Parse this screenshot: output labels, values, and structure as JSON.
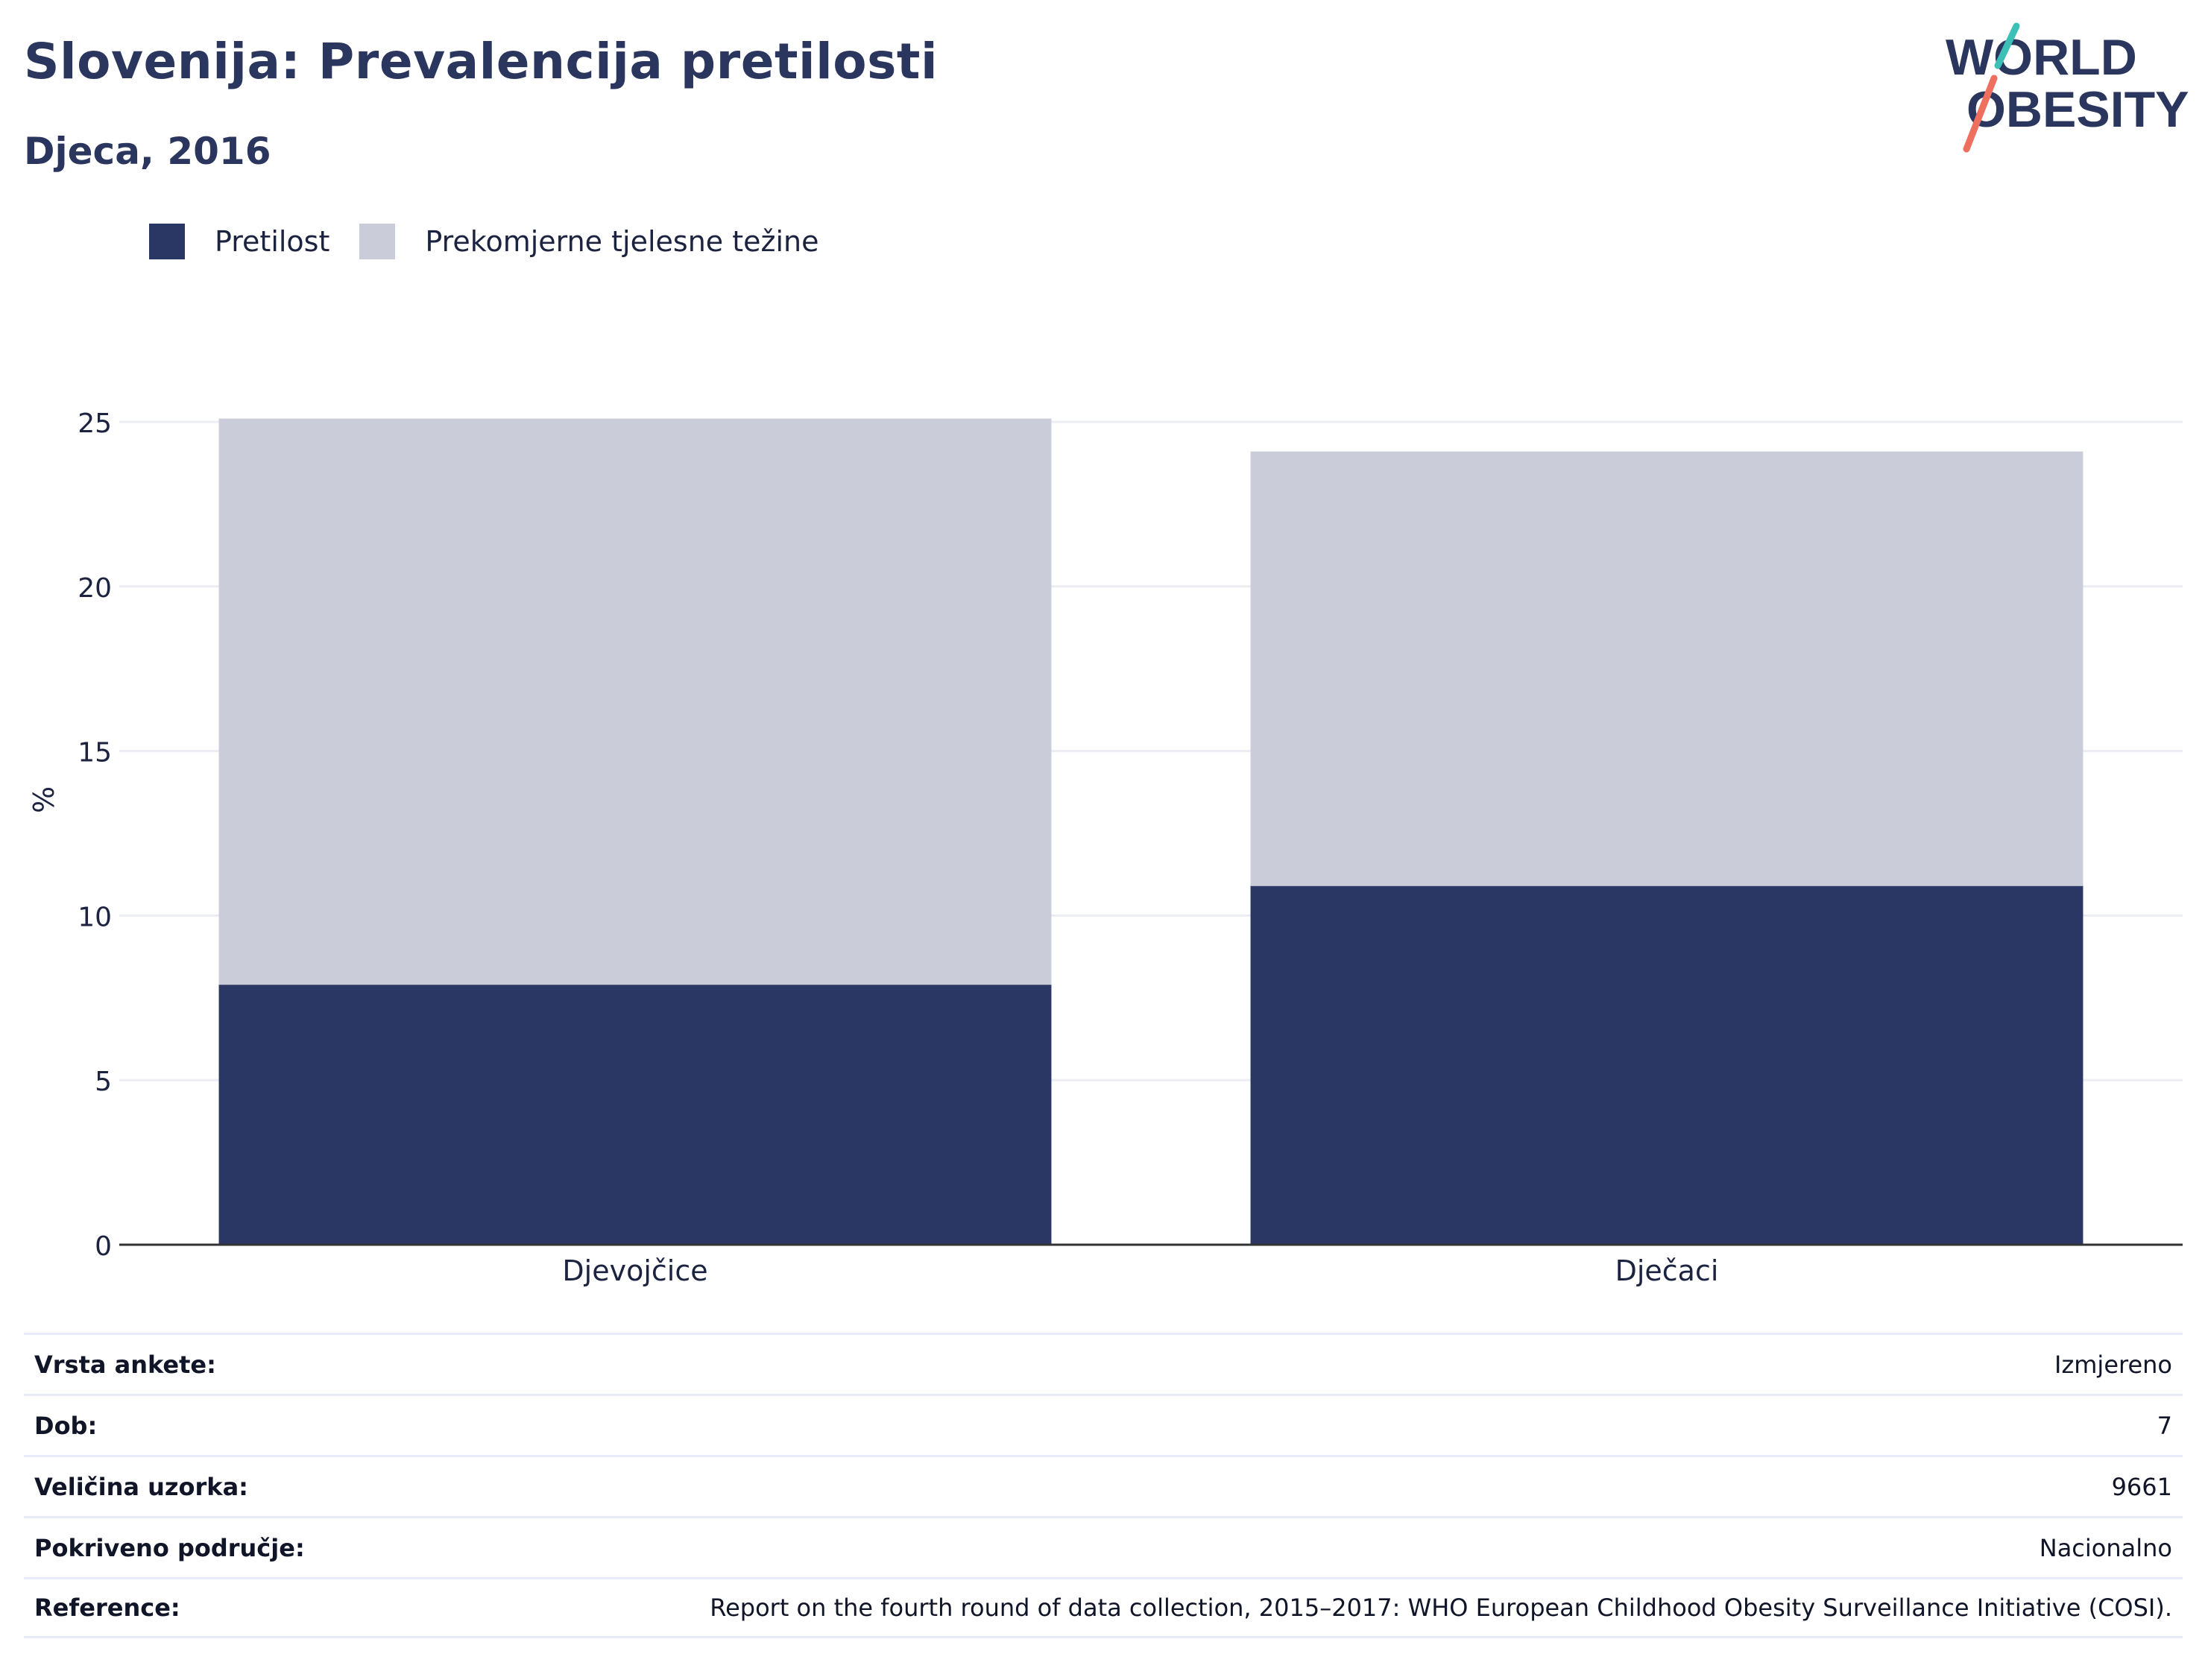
{
  "header": {
    "title": "Slovenija: Prevalencija pretilosti",
    "subtitle": "Djeca, 2016"
  },
  "logo": {
    "line1": "WORLD",
    "line2": "OBESITY",
    "colors": {
      "text": "#2b365f",
      "teal": "#3bbfb6",
      "coral": "#ef6f5e"
    }
  },
  "colors": {
    "obesity": "#2a3764",
    "overweight": "#cacdd9",
    "grid": "#ebedf2",
    "axis": "#333333"
  },
  "chart_data": {
    "type": "bar",
    "stacked": true,
    "categories": [
      "Djevojčice",
      "Dječaci"
    ],
    "series": [
      {
        "name": "Pretilost",
        "values": [
          7.9,
          10.9
        ],
        "color": "#2a3764"
      },
      {
        "name": "Prekomjerne tjelesne težine",
        "values": [
          17.2,
          13.2
        ],
        "color": "#cacdd9"
      }
    ],
    "ylabel": "%",
    "ylim": [
      0,
      25
    ],
    "yticks": [
      0,
      5,
      10,
      15,
      20,
      25
    ],
    "grid": true,
    "legend_position": "top-left"
  },
  "info": [
    {
      "key": "Vrsta ankete:",
      "value": "Izmjereno"
    },
    {
      "key": "Dob:",
      "value": "7"
    },
    {
      "key": "Veličina uzorka:",
      "value": "9661"
    },
    {
      "key": "Pokriveno područje:",
      "value": "Nacionalno"
    },
    {
      "key": "Reference:",
      "value": "Report on the fourth round of data collection, 2015–2017: WHO European Childhood Obesity Surveillance Initiative (COSI)."
    }
  ]
}
